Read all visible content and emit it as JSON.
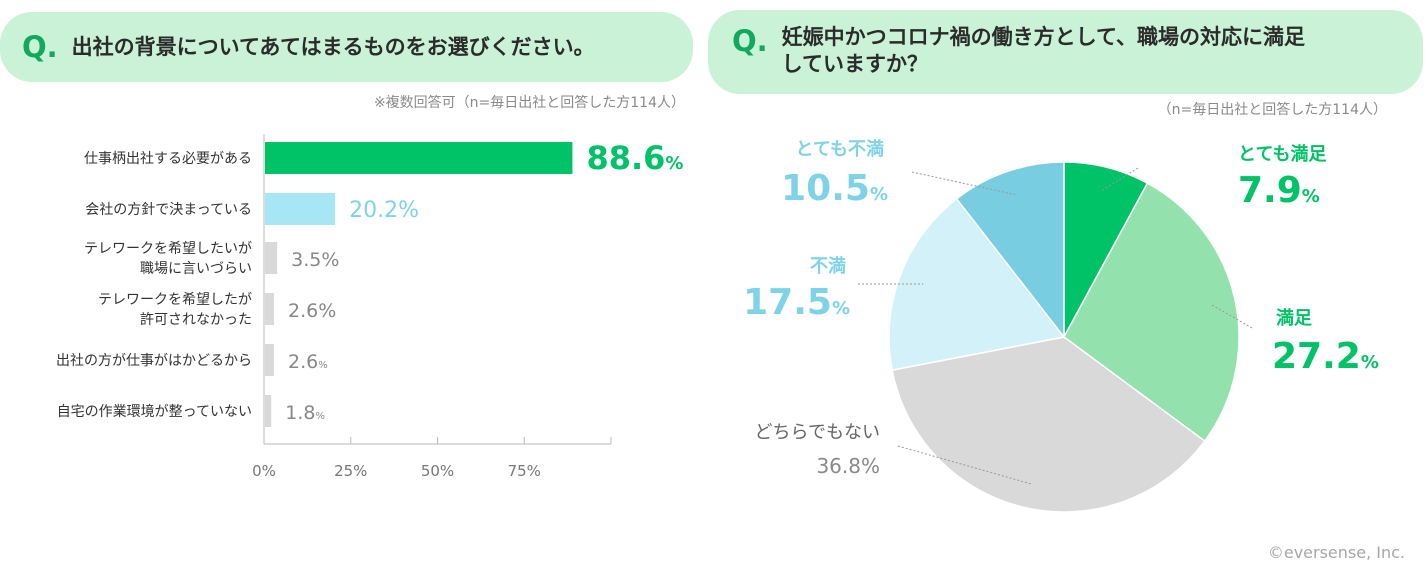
{
  "left_question": {
    "mark": "Q.",
    "text": "出社の背景についてあてはまるものをお選びください。"
  },
  "left_note": "※複数回答可（n=毎日出社と回答した方114人）",
  "right_question": {
    "mark": "Q.",
    "line1": "妊娠中かつコロナ禍の働き方として、職場の対応に満足",
    "line2": "していますか？"
  },
  "right_note": "（n=毎日出社と回答した方114人）",
  "copyright": "©eversense, Inc.",
  "colors": {
    "dark_green": "#00c266",
    "light_blue": "#a6e6f5",
    "gray": "#d9d9d9",
    "mid_green": "#93e2ad",
    "pale_blue": "#d3f1f8",
    "blue": "#79cde0"
  },
  "chart_data": [
    {
      "type": "bar",
      "orientation": "horizontal",
      "categories": [
        [
          "仕事柄出社する必要がある"
        ],
        [
          "会社の方針で決まっている"
        ],
        [
          "テレワークを希望したいが",
          "職場に言いづらい"
        ],
        [
          "テレワークを希望したが",
          "許可されなかった"
        ],
        [
          "出社の方が仕事がはかどるから"
        ],
        [
          "自宅の作業環境が整っていない"
        ]
      ],
      "values": [
        88.6,
        20.2,
        3.5,
        2.6,
        2.6,
        1.8
      ],
      "value_labels": [
        "88.6",
        "20.2%",
        "3.5%",
        "2.6%",
        "2.6",
        "1.8"
      ],
      "value_suffix": [
        "%",
        "",
        "",
        "",
        "%",
        "%"
      ],
      "bar_colors": [
        "#00c266",
        "#a6e6f5",
        "#d9d9d9",
        "#d9d9d9",
        "#d9d9d9",
        "#d9d9d9"
      ],
      "label_colors": [
        "#00c266",
        "#7fd3e8",
        "#888888",
        "#888888",
        "#888888",
        "#888888"
      ],
      "xlim": [
        0,
        100
      ],
      "xticks": [
        0,
        25,
        50,
        75,
        100
      ],
      "xtick_labels": [
        "0%",
        "25%",
        "50%",
        "75%",
        ""
      ]
    },
    {
      "type": "pie",
      "slices": [
        {
          "name": "とても満足",
          "value": 7.9,
          "label": "7.9",
          "suffix": "%",
          "color": "#00c266",
          "label_color": "#00c266"
        },
        {
          "name": "満足",
          "value": 27.2,
          "label": "27.2",
          "suffix": "%",
          "color": "#93e2ad",
          "label_color": "#00c266"
        },
        {
          "name": "どちらでもない",
          "value": 36.8,
          "label": "36.8%",
          "suffix": "",
          "color": "#d9d9d9",
          "label_color": "#8a8a8a"
        },
        {
          "name": "不満",
          "value": 17.5,
          "label": "17.5",
          "suffix": "%",
          "color": "#d3f1f8",
          "label_color": "#7fd3e8"
        },
        {
          "name": "とても不満",
          "value": 10.5,
          "label": "10.5",
          "suffix": "%",
          "color": "#79cde0",
          "label_color": "#7fd3e8"
        }
      ]
    }
  ]
}
